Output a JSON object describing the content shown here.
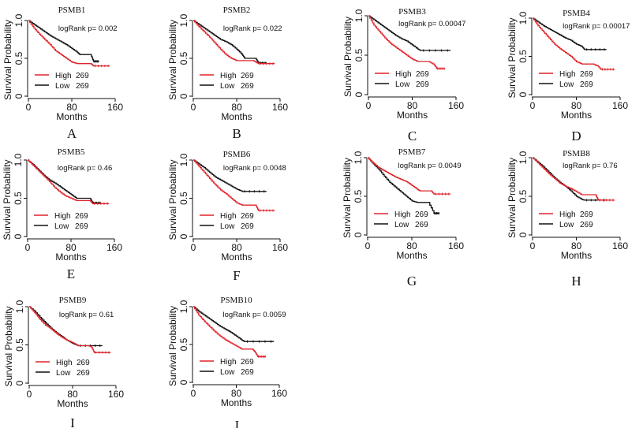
{
  "figure": {
    "legend_colors": {
      "High": "#e0242b",
      "Low": "#111111"
    }
  },
  "chart_data": [
    {
      "type": "line",
      "panel": "A",
      "title": "PSMB1",
      "xlabel": "Months",
      "ylabel": "Survival Probability",
      "xticks": [
        "0",
        "80",
        "160"
      ],
      "yticks": [
        "0",
        "0.5",
        "1.0"
      ],
      "xlim": [
        0,
        160
      ],
      "ylim": [
        0,
        1
      ],
      "annotation": "logRank p= 0.002",
      "legend": [
        {
          "name": "High",
          "n": "269"
        },
        {
          "name": "Low",
          "n": "269"
        }
      ],
      "series": [
        {
          "name": "High",
          "x": [
            0,
            10,
            20,
            30,
            40,
            50,
            60,
            70,
            80,
            90,
            100,
            110,
            115,
            120,
            150
          ],
          "y": [
            1.0,
            0.9,
            0.82,
            0.75,
            0.68,
            0.6,
            0.55,
            0.5,
            0.45,
            0.43,
            0.43,
            0.43,
            0.43,
            0.4,
            0.4
          ]
        },
        {
          "name": "Low",
          "x": [
            0,
            10,
            20,
            30,
            40,
            50,
            60,
            70,
            80,
            90,
            95,
            110,
            115,
            120,
            130
          ],
          "y": [
            1.0,
            0.95,
            0.9,
            0.85,
            0.8,
            0.76,
            0.72,
            0.68,
            0.63,
            0.58,
            0.55,
            0.55,
            0.55,
            0.46,
            0.46
          ]
        }
      ]
    },
    {
      "type": "line",
      "panel": "B",
      "title": "PSMB2",
      "xlabel": "Months",
      "ylabel": "Survival Probability",
      "xticks": [
        "0",
        "80",
        "160"
      ],
      "yticks": [
        "0",
        "0.5",
        "1.0"
      ],
      "xlim": [
        0,
        160
      ],
      "ylim": [
        0,
        1
      ],
      "annotation": "logRank p= 0.022",
      "legend": [
        {
          "name": "High",
          "n": "269"
        },
        {
          "name": "Low",
          "n": "269"
        }
      ],
      "series": [
        {
          "name": "High",
          "x": [
            0,
            10,
            20,
            30,
            40,
            50,
            60,
            70,
            80,
            90,
            110,
            120,
            150
          ],
          "y": [
            1.0,
            0.92,
            0.85,
            0.78,
            0.7,
            0.62,
            0.55,
            0.5,
            0.47,
            0.47,
            0.47,
            0.43,
            0.43
          ]
        },
        {
          "name": "Low",
          "x": [
            0,
            10,
            20,
            30,
            40,
            50,
            60,
            70,
            80,
            90,
            95,
            115,
            120,
            135
          ],
          "y": [
            1.0,
            0.95,
            0.9,
            0.85,
            0.8,
            0.75,
            0.72,
            0.68,
            0.62,
            0.55,
            0.5,
            0.5,
            0.44,
            0.44
          ]
        }
      ]
    },
    {
      "type": "line",
      "panel": "C",
      "title": "PSMB3",
      "xlabel": "Months",
      "ylabel": "Survival Probability",
      "xticks": [
        "0",
        "80",
        "160"
      ],
      "yticks": [
        "0",
        "0.5",
        "1.0"
      ],
      "xlim": [
        0,
        160
      ],
      "ylim": [
        0,
        1
      ],
      "annotation": "logRank p= 0.00047",
      "legend": [
        {
          "name": "High",
          "n": "269"
        },
        {
          "name": "Low",
          "n": "269"
        }
      ],
      "series": [
        {
          "name": "High",
          "x": [
            0,
            10,
            20,
            30,
            40,
            50,
            60,
            70,
            80,
            90,
            110,
            120,
            125,
            140
          ],
          "y": [
            1.0,
            0.88,
            0.8,
            0.72,
            0.65,
            0.6,
            0.55,
            0.5,
            0.45,
            0.42,
            0.42,
            0.38,
            0.33,
            0.33
          ]
        },
        {
          "name": "Low",
          "x": [
            0,
            10,
            20,
            30,
            40,
            50,
            60,
            70,
            80,
            90,
            95,
            150
          ],
          "y": [
            1.0,
            0.95,
            0.9,
            0.85,
            0.8,
            0.75,
            0.71,
            0.68,
            0.63,
            0.58,
            0.56,
            0.56
          ]
        }
      ]
    },
    {
      "type": "line",
      "panel": "D",
      "title": "PSMB4",
      "xlabel": "Months",
      "ylabel": "Survival Probability",
      "xticks": [
        "0",
        "80",
        "160"
      ],
      "yticks": [
        "0",
        "0.5",
        "1.0"
      ],
      "xlim": [
        0,
        160
      ],
      "ylim": [
        0,
        1
      ],
      "annotation": "logRank p= 0.00017",
      "legend": [
        {
          "name": "High",
          "n": "269"
        },
        {
          "name": "Low",
          "n": "269"
        }
      ],
      "series": [
        {
          "name": "High",
          "x": [
            0,
            10,
            20,
            30,
            40,
            50,
            60,
            70,
            80,
            90,
            110,
            120,
            125,
            150
          ],
          "y": [
            1.0,
            0.9,
            0.82,
            0.74,
            0.66,
            0.6,
            0.55,
            0.5,
            0.43,
            0.4,
            0.4,
            0.37,
            0.33,
            0.33
          ]
        },
        {
          "name": "Low",
          "x": [
            0,
            10,
            20,
            30,
            40,
            50,
            60,
            70,
            80,
            90,
            95,
            135
          ],
          "y": [
            1.0,
            0.95,
            0.9,
            0.86,
            0.82,
            0.78,
            0.74,
            0.71,
            0.66,
            0.63,
            0.59,
            0.59
          ]
        }
      ]
    },
    {
      "type": "line",
      "panel": "E",
      "title": "PSMB5",
      "xlabel": "Months",
      "ylabel": "Survival Probability",
      "xticks": [
        "0",
        "80",
        "160"
      ],
      "yticks": [
        "0",
        "0.5",
        "1.0"
      ],
      "xlim": [
        0,
        160
      ],
      "ylim": [
        0,
        1
      ],
      "annotation": "logRank p= 0.46",
      "legend": [
        {
          "name": "High",
          "n": "269"
        },
        {
          "name": "Low",
          "n": "269"
        }
      ],
      "series": [
        {
          "name": "High",
          "x": [
            0,
            10,
            20,
            30,
            40,
            50,
            60,
            70,
            80,
            90,
            110,
            115,
            120,
            150
          ],
          "y": [
            1.0,
            0.93,
            0.86,
            0.79,
            0.72,
            0.64,
            0.58,
            0.53,
            0.5,
            0.47,
            0.47,
            0.47,
            0.43,
            0.43
          ]
        },
        {
          "name": "Low",
          "x": [
            0,
            10,
            20,
            30,
            40,
            50,
            60,
            70,
            80,
            90,
            110,
            115,
            120,
            135
          ],
          "y": [
            1.0,
            0.94,
            0.87,
            0.8,
            0.74,
            0.7,
            0.65,
            0.6,
            0.55,
            0.5,
            0.5,
            0.5,
            0.44,
            0.44
          ]
        }
      ]
    },
    {
      "type": "line",
      "panel": "F",
      "title": "PSMB6",
      "xlabel": "Months",
      "ylabel": "Survival Probability",
      "xticks": [
        "0",
        "80",
        "160"
      ],
      "yticks": [
        "0",
        "0.5",
        "1.0"
      ],
      "xlim": [
        0,
        160
      ],
      "ylim": [
        0,
        1
      ],
      "annotation": "logRank p= 0.0048",
      "legend": [
        {
          "name": "High",
          "n": "269"
        },
        {
          "name": "Low",
          "n": "269"
        }
      ],
      "series": [
        {
          "name": "High",
          "x": [
            0,
            10,
            20,
            30,
            40,
            50,
            60,
            70,
            80,
            90,
            110,
            115,
            120,
            150
          ],
          "y": [
            1.0,
            0.92,
            0.84,
            0.76,
            0.68,
            0.61,
            0.56,
            0.5,
            0.44,
            0.41,
            0.41,
            0.41,
            0.34,
            0.34
          ]
        },
        {
          "name": "Low",
          "x": [
            0,
            10,
            20,
            30,
            40,
            50,
            60,
            70,
            80,
            90,
            135
          ],
          "y": [
            1.0,
            0.95,
            0.9,
            0.84,
            0.78,
            0.74,
            0.7,
            0.66,
            0.62,
            0.59,
            0.59
          ]
        }
      ]
    },
    {
      "type": "line",
      "panel": "G",
      "title": "PSMB7",
      "xlabel": "Months",
      "ylabel": "Survival Probability",
      "xticks": [
        "0",
        "80",
        "160"
      ],
      "yticks": [
        "0",
        "0.5",
        "1.0"
      ],
      "xlim": [
        0,
        160
      ],
      "ylim": [
        0,
        1
      ],
      "annotation": "logRank p= 0.0049",
      "legend": [
        {
          "name": "High",
          "n": "269"
        },
        {
          "name": "Low",
          "n": "269"
        }
      ],
      "series": [
        {
          "name": "High",
          "x": [
            0,
            10,
            20,
            30,
            40,
            50,
            60,
            70,
            80,
            90,
            95,
            115,
            120,
            150
          ],
          "y": [
            1.0,
            0.93,
            0.87,
            0.83,
            0.79,
            0.75,
            0.72,
            0.69,
            0.64,
            0.59,
            0.57,
            0.57,
            0.53,
            0.53
          ]
        },
        {
          "name": "Low",
          "x": [
            0,
            10,
            20,
            30,
            40,
            50,
            60,
            70,
            80,
            90,
            110,
            120,
            130
          ],
          "y": [
            1.0,
            0.92,
            0.85,
            0.76,
            0.68,
            0.62,
            0.56,
            0.5,
            0.44,
            0.42,
            0.42,
            0.28,
            0.28
          ]
        }
      ]
    },
    {
      "type": "line",
      "panel": "H",
      "title": "PSMB8",
      "xlabel": "Months",
      "ylabel": "Survival Probability",
      "xticks": [
        "0",
        "80",
        "160"
      ],
      "yticks": [
        "0",
        "0.5",
        "1.0"
      ],
      "xlim": [
        0,
        160
      ],
      "ylim": [
        0,
        1
      ],
      "annotation": "logRank p= 0.76",
      "legend": [
        {
          "name": "High",
          "n": "269"
        },
        {
          "name": "Low",
          "n": "269"
        }
      ],
      "series": [
        {
          "name": "High",
          "x": [
            0,
            10,
            20,
            30,
            40,
            50,
            60,
            70,
            80,
            90,
            110,
            115,
            120,
            150
          ],
          "y": [
            1.0,
            0.93,
            0.86,
            0.79,
            0.73,
            0.67,
            0.63,
            0.6,
            0.56,
            0.52,
            0.52,
            0.52,
            0.45,
            0.45
          ]
        },
        {
          "name": "Low",
          "x": [
            0,
            10,
            20,
            30,
            40,
            50,
            60,
            70,
            80,
            90,
            95,
            135
          ],
          "y": [
            1.0,
            0.94,
            0.88,
            0.81,
            0.74,
            0.68,
            0.63,
            0.57,
            0.5,
            0.46,
            0.45,
            0.45
          ]
        }
      ]
    },
    {
      "type": "line",
      "panel": "I",
      "title": "PSMB9",
      "xlabel": "Months",
      "ylabel": "Survival Probability",
      "xticks": [
        "0",
        "80",
        "160"
      ],
      "yticks": [
        "0",
        "0.5",
        "1.0"
      ],
      "xlim": [
        0,
        160
      ],
      "ylim": [
        0,
        1
      ],
      "annotation": "logRank p= 0.61",
      "legend": [
        {
          "name": "High",
          "n": "269"
        },
        {
          "name": "Low",
          "n": "269"
        }
      ],
      "series": [
        {
          "name": "High",
          "x": [
            0,
            10,
            20,
            30,
            40,
            50,
            60,
            70,
            80,
            90,
            110,
            115,
            120,
            150
          ],
          "y": [
            1.0,
            0.92,
            0.83,
            0.76,
            0.71,
            0.65,
            0.6,
            0.56,
            0.53,
            0.49,
            0.49,
            0.47,
            0.4,
            0.4
          ]
        },
        {
          "name": "Low",
          "x": [
            0,
            10,
            20,
            30,
            40,
            50,
            60,
            70,
            80,
            90,
            135
          ],
          "y": [
            1.0,
            0.94,
            0.86,
            0.79,
            0.72,
            0.66,
            0.61,
            0.56,
            0.52,
            0.49,
            0.49
          ]
        }
      ]
    },
    {
      "type": "line",
      "panel": "J",
      "title": "PSMB10",
      "xlabel": "Months",
      "ylabel": "Survival Probability",
      "xticks": [
        "0",
        "80",
        "160"
      ],
      "yticks": [
        "0",
        "0.5",
        "1.0"
      ],
      "xlim": [
        0,
        160
      ],
      "ylim": [
        0,
        1
      ],
      "annotation": "logRank p= 0.0059",
      "legend": [
        {
          "name": "High",
          "n": "269"
        },
        {
          "name": "Low",
          "n": "269"
        }
      ],
      "series": [
        {
          "name": "High",
          "x": [
            0,
            10,
            20,
            30,
            40,
            50,
            60,
            70,
            80,
            90,
            110,
            115,
            120,
            135
          ],
          "y": [
            1.0,
            0.89,
            0.81,
            0.74,
            0.67,
            0.61,
            0.56,
            0.52,
            0.48,
            0.44,
            0.44,
            0.4,
            0.34,
            0.34
          ]
        },
        {
          "name": "Low",
          "x": [
            0,
            10,
            20,
            30,
            40,
            50,
            60,
            70,
            80,
            90,
            95,
            150
          ],
          "y": [
            1.0,
            0.94,
            0.89,
            0.84,
            0.79,
            0.74,
            0.7,
            0.66,
            0.61,
            0.56,
            0.54,
            0.54
          ]
        }
      ]
    }
  ]
}
